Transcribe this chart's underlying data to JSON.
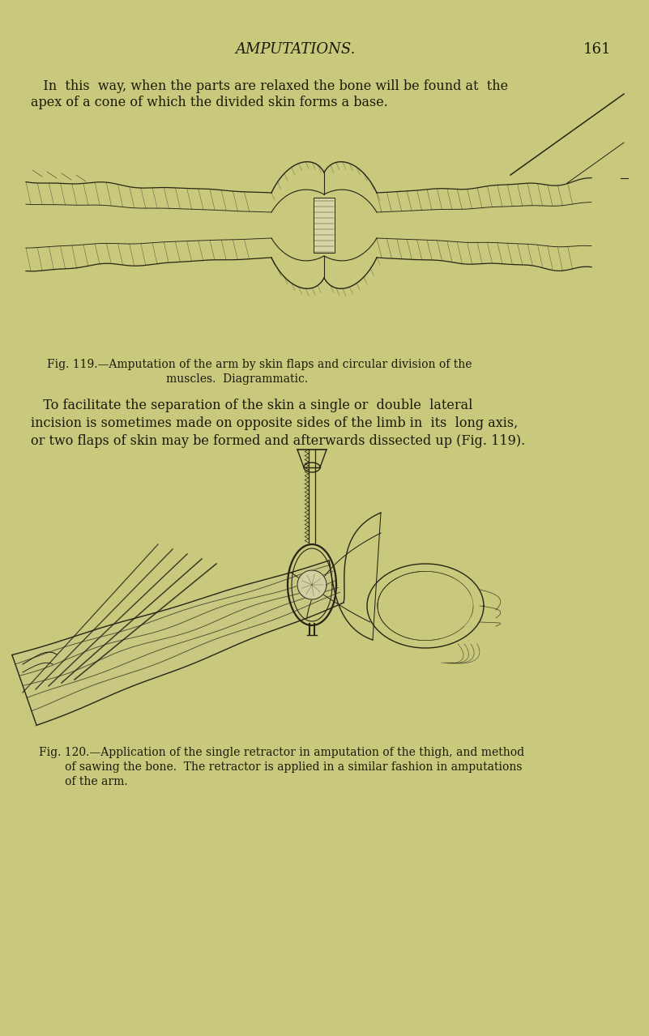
{
  "background_color": "#c9c97d",
  "text_color": "#1a1a0a",
  "title": "AMPUTATIONS.",
  "page_number": "161",
  "title_fontsize": 13,
  "body_fontsize": 11.5,
  "caption_fontsize": 10,
  "fig119_caption_line1": "Fig. 119.—Amputation of the arm by skin flaps and circular division of the",
  "fig119_caption_line2": "muscles.  Diagrammatic.",
  "fig120_caption_line1": "Fig. 120.—Application of the single retractor in amputation of the thigh, and method",
  "fig120_caption_line2": "of sawing the bone.  The retractor is applied in a similar fashion in amputations",
  "fig120_caption_line3": "of the arm.",
  "para1_line1": "   In  this  way, when the parts are relaxed the bone will be found at  the",
  "para1_line2": "apex of a cone of which the divided skin forms a base.",
  "para2_line1": "   To facilitate the separation of the skin a single or  double  lateral",
  "para2_line2": "incision is sometimes made on opposite sides of the limb in  its  long axis,",
  "para2_line3": "or two flaps of skin may be formed and afterwards dissected up (Fig. 119)."
}
